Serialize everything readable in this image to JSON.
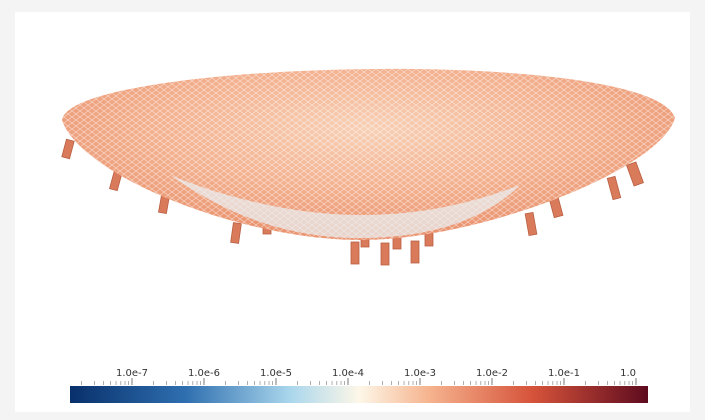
{
  "colorbar": {
    "tick_labels": [
      "1.0e-7",
      "1.0e-6",
      "1.0e-5",
      "1.0e-4",
      "1.0e-3",
      "1.0e-2",
      "1.0e-1",
      "1.0"
    ]
  }
}
